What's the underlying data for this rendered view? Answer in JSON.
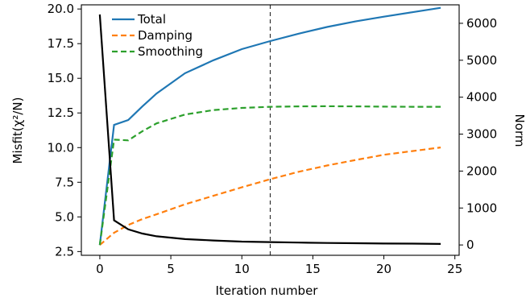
{
  "chart_data": {
    "type": "line",
    "xlabel": "Iteration number",
    "ylabel_left": "Misfit(χ²/N)",
    "ylabel_right": "Norm",
    "xlim": [
      -1.3,
      25.3
    ],
    "ylim_left": [
      2.23,
      20.3
    ],
    "ylim_right": [
      -280,
      6500
    ],
    "xticks": [
      0,
      5,
      10,
      15,
      20,
      25
    ],
    "yticks_left": [
      "2.5",
      "5.0",
      "7.5",
      "10.0",
      "12.5",
      "15.0",
      "17.5",
      "20.0"
    ],
    "yticks_right": [
      0,
      1000,
      2000,
      3000,
      4000,
      5000,
      6000
    ],
    "grid": false,
    "legend_position": "top-left",
    "vline_x": 12,
    "misfit": {
      "color": "#000000",
      "axis": "left",
      "x": [
        0,
        1,
        2,
        3,
        4,
        6,
        8,
        10,
        12,
        14,
        16,
        18,
        20,
        22,
        24
      ],
      "y": [
        19.6,
        4.75,
        4.1,
        3.8,
        3.6,
        3.4,
        3.3,
        3.22,
        3.18,
        3.15,
        3.12,
        3.1,
        3.08,
        3.07,
        3.05
      ]
    },
    "series": [
      {
        "name": "Total",
        "color": "#1f77b4",
        "dash": "solid",
        "axis": "right",
        "x": [
          0,
          1,
          2,
          3,
          4,
          6,
          8,
          10,
          12,
          14,
          16,
          18,
          20,
          22,
          24
        ],
        "y": [
          0,
          3250,
          3380,
          3750,
          4100,
          4650,
          5000,
          5300,
          5520,
          5720,
          5900,
          6050,
          6180,
          6300,
          6420
        ]
      },
      {
        "name": "Damping",
        "color": "#ff7f0e",
        "dash": "dashed",
        "axis": "right",
        "x": [
          0,
          1,
          2,
          3,
          4,
          6,
          8,
          10,
          12,
          14,
          16,
          18,
          20,
          22,
          24
        ],
        "y": [
          0,
          330,
          540,
          700,
          830,
          1100,
          1330,
          1560,
          1780,
          1980,
          2150,
          2300,
          2440,
          2540,
          2640
        ]
      },
      {
        "name": "Smoothing",
        "color": "#2ca02c",
        "dash": "dashed",
        "axis": "right",
        "x": [
          0,
          1,
          2,
          3,
          4,
          6,
          8,
          10,
          12,
          14,
          16,
          18,
          20,
          22,
          24
        ],
        "y": [
          0,
          2850,
          2830,
          3080,
          3290,
          3530,
          3650,
          3710,
          3740,
          3750,
          3755,
          3750,
          3745,
          3740,
          3740
        ]
      }
    ]
  }
}
